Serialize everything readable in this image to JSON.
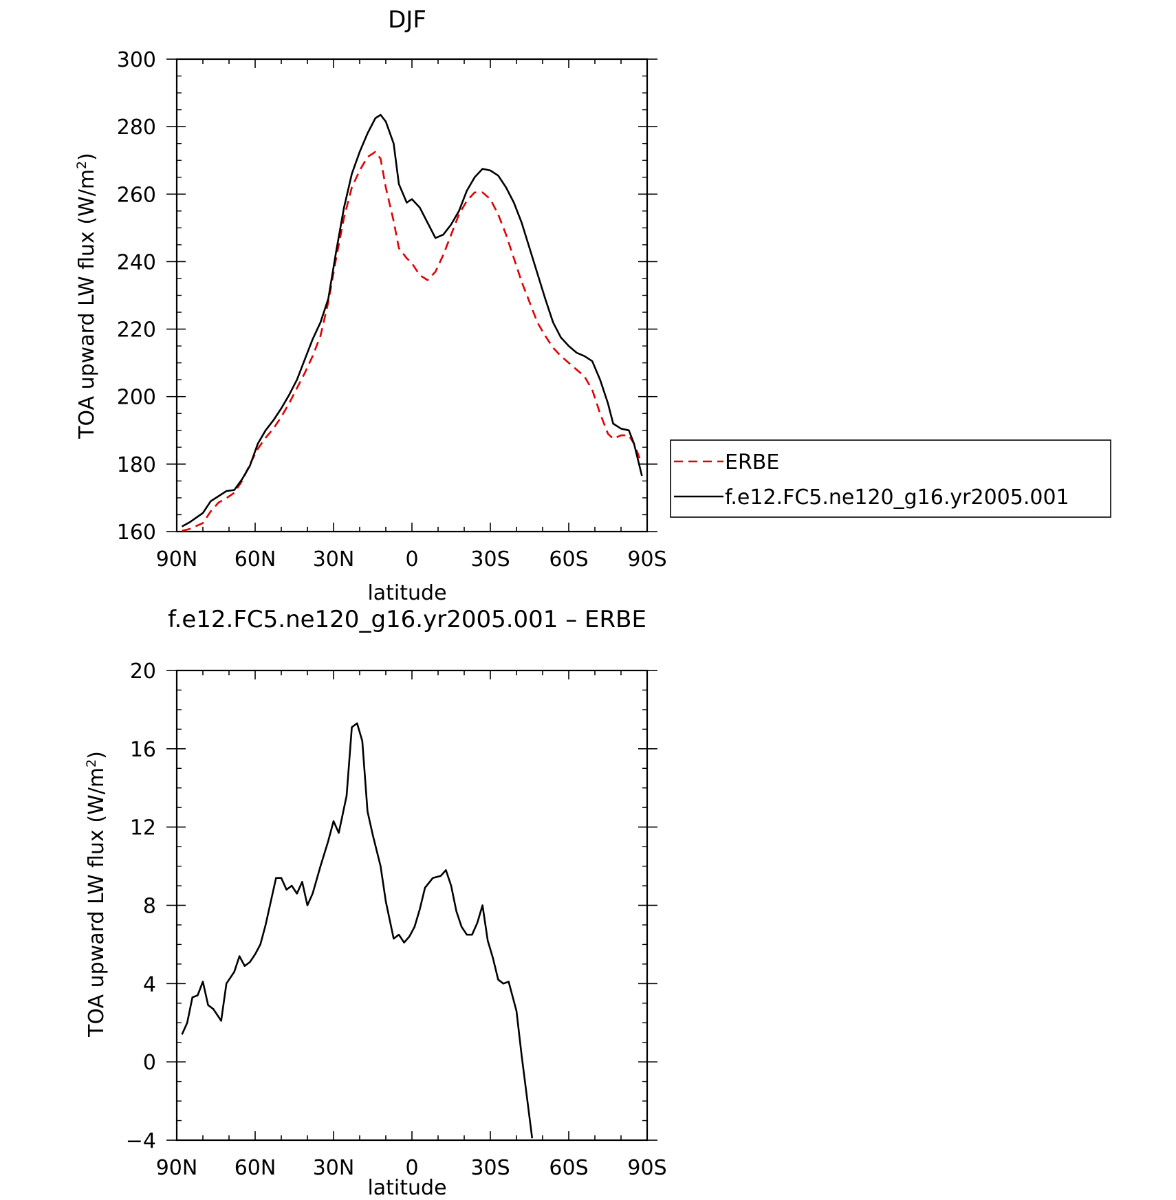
{
  "chart_data": [
    {
      "type": "line",
      "title": "DJF",
      "xlabel": "latitude",
      "ylabel": "TOA upward LW flux (W/m",
      "ylabel_sup": "2",
      "ylabel_end": ")",
      "xlim": [
        90,
        -90
      ],
      "ylim": [
        160,
        300
      ],
      "xticks": [
        90,
        60,
        30,
        0,
        -30,
        -60,
        -90
      ],
      "xtick_labels": [
        "90N",
        "60N",
        "30N",
        "0",
        "30S",
        "60S",
        "90S"
      ],
      "yticks": [
        160,
        180,
        200,
        220,
        240,
        260,
        280,
        300
      ],
      "ytick_labels": [
        "160",
        "180",
        "200",
        "220",
        "240",
        "260",
        "280",
        "300"
      ],
      "legend": "right",
      "series": [
        {
          "name": "ERBE",
          "color": "#e00000",
          "style": "dashed",
          "points": [
            [
              88,
              160.2
            ],
            [
              85,
              160.8
            ],
            [
              80,
              162.5
            ],
            [
              77,
              166
            ],
            [
              74,
              168.6
            ],
            [
              71,
              169.9
            ],
            [
              68,
              171.5
            ],
            [
              65,
              175
            ],
            [
              62,
              180
            ],
            [
              59,
              184.5
            ],
            [
              56,
              187.8
            ],
            [
              53,
              190.5
            ],
            [
              50,
              194
            ],
            [
              47,
              198
            ],
            [
              44,
              202.5
            ],
            [
              41,
              207
            ],
            [
              38,
              212
            ],
            [
              35,
              218
            ],
            [
              32,
              228
            ],
            [
              29,
              241
            ],
            [
              26,
              253
            ],
            [
              23,
              262
            ],
            [
              20,
              267
            ],
            [
              17,
              271
            ],
            [
              14,
              272.5
            ],
            [
              12,
              270.5
            ],
            [
              10,
              262
            ],
            [
              7,
              252
            ],
            [
              5,
              244
            ],
            [
              2,
              241
            ],
            [
              0,
              239.5
            ],
            [
              -3,
              236
            ],
            [
              -6,
              234.5
            ],
            [
              -9,
              237
            ],
            [
              -12,
              242
            ],
            [
              -15,
              248
            ],
            [
              -18,
              254
            ],
            [
              -21,
              258
            ],
            [
              -24,
              260.5
            ],
            [
              -27,
              260.5
            ],
            [
              -30,
              258.5
            ],
            [
              -33,
              254
            ],
            [
              -36,
              248
            ],
            [
              -39,
              241
            ],
            [
              -42,
              234
            ],
            [
              -45,
              228
            ],
            [
              -48,
              222
            ],
            [
              -51,
              218
            ],
            [
              -54,
              214.5
            ],
            [
              -57,
              212
            ],
            [
              -60,
              210
            ],
            [
              -63,
              208
            ],
            [
              -66,
              206
            ],
            [
              -69,
              202
            ],
            [
              -72,
              195
            ],
            [
              -75,
              189
            ],
            [
              -77,
              187.5
            ],
            [
              -80,
              188.5
            ],
            [
              -83,
              188.5
            ],
            [
              -85,
              186
            ],
            [
              -88,
              180
            ]
          ]
        },
        {
          "name": "f.e12.FC5.ne120_g16.yr2005.001",
          "color": "#000000",
          "style": "solid",
          "points": [
            [
              88,
              161.5
            ],
            [
              85,
              162.8
            ],
            [
              80,
              165.5
            ],
            [
              77,
              169
            ],
            [
              74,
              170.5
            ],
            [
              71,
              172
            ],
            [
              68,
              172.3
            ],
            [
              65,
              175.5
            ],
            [
              62,
              179.5
            ],
            [
              59,
              186
            ],
            [
              56,
              190
            ],
            [
              53,
              193
            ],
            [
              50,
              196.5
            ],
            [
              47,
              200.5
            ],
            [
              44,
              205
            ],
            [
              41,
              211
            ],
            [
              38,
              217
            ],
            [
              35,
              222
            ],
            [
              32,
              229
            ],
            [
              29,
              243
            ],
            [
              26,
              256
            ],
            [
              23,
              266
            ],
            [
              20,
              272.5
            ],
            [
              17,
              278
            ],
            [
              14,
              282.5
            ],
            [
              12,
              283.5
            ],
            [
              10,
              281.5
            ],
            [
              7,
              275
            ],
            [
              5,
              263
            ],
            [
              2,
              257.5
            ],
            [
              0,
              258.5
            ],
            [
              -3,
              256
            ],
            [
              -6,
              251.5
            ],
            [
              -9,
              247
            ],
            [
              -12,
              248
            ],
            [
              -15,
              251
            ],
            [
              -18,
              255
            ],
            [
              -21,
              261
            ],
            [
              -24,
              265
            ],
            [
              -27,
              267.5
            ],
            [
              -30,
              267
            ],
            [
              -33,
              265.5
            ],
            [
              -36,
              262
            ],
            [
              -39,
              257.5
            ],
            [
              -42,
              251.5
            ],
            [
              -45,
              244
            ],
            [
              -48,
              236.5
            ],
            [
              -51,
              229
            ],
            [
              -54,
              222
            ],
            [
              -57,
              217.5
            ],
            [
              -60,
              215
            ],
            [
              -63,
              213
            ],
            [
              -66,
              212
            ],
            [
              -69,
              210.5
            ],
            [
              -72,
              205
            ],
            [
              -75,
              198
            ],
            [
              -77,
              192
            ],
            [
              -80,
              190.5
            ],
            [
              -83,
              190
            ],
            [
              -85,
              186
            ],
            [
              -88,
              176.5
            ]
          ]
        }
      ]
    },
    {
      "type": "line",
      "title": "f.e12.FC5.ne120_g16.yr2005.001 – ERBE",
      "xlabel": "latitude",
      "ylabel": "TOA upward LW flux (W/m",
      "ylabel_sup": "2",
      "ylabel_end": ")",
      "xlim": [
        90,
        -90
      ],
      "ylim": [
        -4,
        20
      ],
      "xticks": [
        90,
        60,
        30,
        0,
        -30,
        -60,
        -90
      ],
      "xtick_labels": [
        "90N",
        "60N",
        "30N",
        "0",
        "30S",
        "60S",
        "90S"
      ],
      "yticks": [
        -4,
        0,
        4,
        8,
        12,
        16,
        20
      ],
      "ytick_labels": [
        "−4",
        "0",
        "4",
        "8",
        "12",
        "16",
        "20"
      ],
      "series": [
        {
          "color": "#000000",
          "style": "solid",
          "points": [
            [
              88,
              1.4
            ],
            [
              86,
              2.0
            ],
            [
              84,
              3.3
            ],
            [
              82,
              3.4
            ],
            [
              80,
              4.1
            ],
            [
              78,
              2.9
            ],
            [
              76,
              2.7
            ],
            [
              73,
              2.1
            ],
            [
              71,
              4.0
            ],
            [
              68,
              4.6
            ],
            [
              66,
              5.4
            ],
            [
              64,
              4.9
            ],
            [
              62,
              5.1
            ],
            [
              60,
              5.5
            ],
            [
              58,
              6.0
            ],
            [
              56,
              7.0
            ],
            [
              52,
              9.4
            ],
            [
              50,
              9.4
            ],
            [
              48,
              8.8
            ],
            [
              46,
              9.0
            ],
            [
              44,
              8.6
            ],
            [
              42,
              9.2
            ],
            [
              40,
              8.0
            ],
            [
              38,
              8.6
            ],
            [
              35,
              10.0
            ],
            [
              32,
              11.3
            ],
            [
              30,
              12.3
            ],
            [
              28,
              11.7
            ],
            [
              25,
              13.6
            ],
            [
              23,
              17.1
            ],
            [
              21,
              17.3
            ],
            [
              19,
              16.4
            ],
            [
              17,
              12.8
            ],
            [
              15,
              11.6
            ],
            [
              12,
              10.0
            ],
            [
              10,
              8.2
            ],
            [
              7,
              6.3
            ],
            [
              5,
              6.5
            ],
            [
              3,
              6.1
            ],
            [
              1,
              6.4
            ],
            [
              -1,
              6.9
            ],
            [
              -3,
              7.8
            ],
            [
              -5,
              8.9
            ],
            [
              -8,
              9.4
            ],
            [
              -11,
              9.5
            ],
            [
              -13,
              9.8
            ],
            [
              -15,
              9.0
            ],
            [
              -17,
              7.7
            ],
            [
              -19,
              6.9
            ],
            [
              -21,
              6.5
            ],
            [
              -23,
              6.5
            ],
            [
              -25,
              7.1
            ],
            [
              -27,
              8.0
            ],
            [
              -29,
              6.2
            ],
            [
              -31,
              5.3
            ],
            [
              -33,
              4.2
            ],
            [
              -35,
              4.0
            ],
            [
              -37,
              4.1
            ],
            [
              -40,
              2.6
            ],
            [
              -42,
              0.3
            ],
            [
              -44,
              -1.8
            ],
            [
              -46,
              -3.9
            ]
          ]
        }
      ]
    }
  ],
  "legend": {
    "entries": [
      "ERBE",
      "f.e12.FC5.ne120_g16.yr2005.001"
    ]
  }
}
